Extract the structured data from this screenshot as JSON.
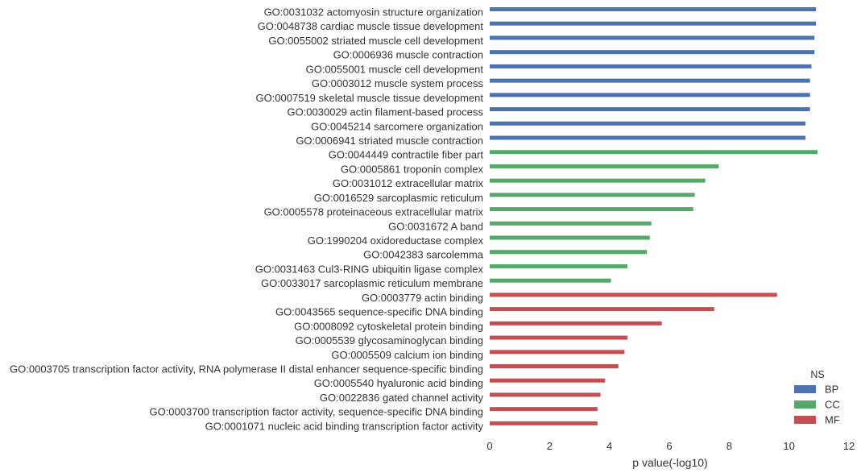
{
  "chart_data": {
    "type": "bar",
    "orientation": "horizontal",
    "xlabel": "p value(-log10)",
    "xlim": [
      0,
      12
    ],
    "xticks": [
      0,
      2,
      4,
      6,
      8,
      10,
      12
    ],
    "grid": false,
    "legend": {
      "title": "NS",
      "placement": "bottom-right",
      "entries": [
        {
          "name": "BP",
          "color": "#4C72B0"
        },
        {
          "name": "CC",
          "color": "#55A868"
        },
        {
          "name": "MF",
          "color": "#C44E52"
        }
      ]
    },
    "categories": [
      "GO:0031032 actomyosin structure organization",
      "GO:0048738 cardiac muscle tissue development",
      "GO:0055002 striated muscle cell development",
      "GO:0006936 muscle contraction",
      "GO:0055001 muscle cell development",
      "GO:0003012 muscle system process",
      "GO:0007519 skeletal muscle tissue development",
      "GO:0030029 actin filament-based process",
      "GO:0045214 sarcomere organization",
      "GO:0006941 striated muscle contraction",
      "GO:0044449 contractile fiber part",
      "GO:0005861 troponin complex",
      "GO:0031012 extracellular matrix",
      "GO:0016529 sarcoplasmic reticulum",
      "GO:0005578 proteinaceous extracellular matrix",
      "GO:0031672 A band",
      "GO:1990204 oxidoreductase complex",
      "GO:0042383 sarcolemma",
      "GO:0031463 Cul3-RING ubiquitin ligase complex",
      "GO:0033017 sarcoplasmic reticulum membrane",
      "GO:0003779 actin binding",
      "GO:0043565 sequence-specific DNA binding",
      "GO:0008092 cytoskeletal protein binding",
      "GO:0005539 glycosaminoglycan binding",
      "GO:0005509 calcium ion binding",
      "GO:0003705 transcription factor activity, RNA polymerase II distal enhancer sequence-specific binding",
      "GO:0005540 hyaluronic acid binding",
      "GO:0022836 gated channel activity",
      "GO:0003700 transcription factor activity, sequence-specific DNA binding",
      "GO:0001071 nucleic acid binding transcription factor activity"
    ],
    "values": [
      10.9,
      10.9,
      10.85,
      10.85,
      10.75,
      10.7,
      10.7,
      10.7,
      10.55,
      10.55,
      10.95,
      7.65,
      7.2,
      6.85,
      6.8,
      5.4,
      5.35,
      5.25,
      4.6,
      4.05,
      9.6,
      7.5,
      5.75,
      4.6,
      4.5,
      4.3,
      3.85,
      3.7,
      3.6,
      3.6
    ],
    "groups": [
      "BP",
      "BP",
      "BP",
      "BP",
      "BP",
      "BP",
      "BP",
      "BP",
      "BP",
      "BP",
      "CC",
      "CC",
      "CC",
      "CC",
      "CC",
      "CC",
      "CC",
      "CC",
      "CC",
      "CC",
      "MF",
      "MF",
      "MF",
      "MF",
      "MF",
      "MF",
      "MF",
      "MF",
      "MF",
      "MF"
    ]
  }
}
